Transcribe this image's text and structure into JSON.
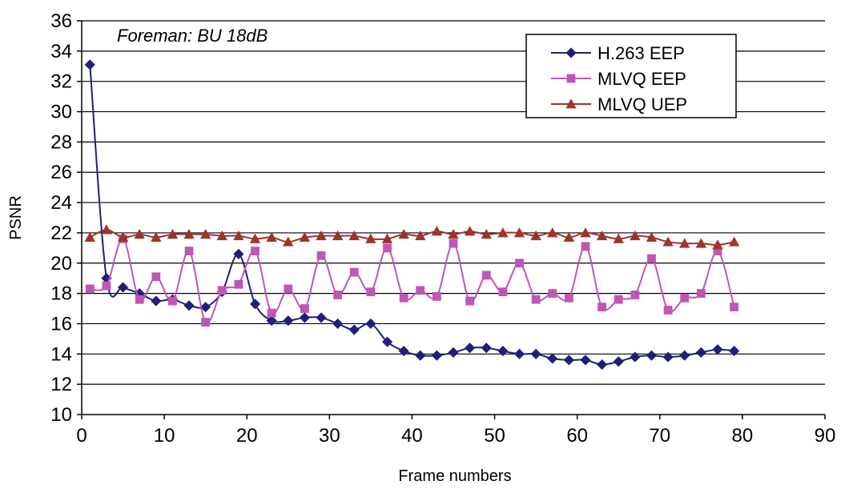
{
  "chart_data": {
    "type": "line",
    "title": "",
    "annotation": "Foreman: BU 18dB",
    "xlabel": "Frame numbers",
    "ylabel": "PSNR",
    "xlim": [
      0,
      90
    ],
    "ylim": [
      10,
      36
    ],
    "xticks": [
      0,
      10,
      20,
      30,
      40,
      50,
      60,
      70,
      80,
      90
    ],
    "yticks": [
      10,
      12,
      14,
      16,
      18,
      20,
      22,
      24,
      26,
      28,
      30,
      32,
      34,
      36
    ],
    "grid": "horizontal",
    "legend_position": "top-right",
    "x": [
      1,
      3,
      5,
      7,
      9,
      11,
      13,
      15,
      17,
      19,
      21,
      23,
      25,
      27,
      29,
      31,
      33,
      35,
      37,
      39,
      41,
      43,
      45,
      47,
      49,
      51,
      53,
      55,
      57,
      59,
      61,
      63,
      65,
      67,
      69,
      71,
      73,
      75,
      77,
      79
    ],
    "series": [
      {
        "name": "H.263  EEP",
        "color": "#1f1f7a",
        "marker": "diamond",
        "values": [
          33.1,
          19.0,
          18.4,
          18.0,
          17.5,
          17.6,
          17.2,
          17.1,
          18.1,
          20.6,
          17.3,
          16.2,
          16.2,
          16.4,
          16.4,
          16.0,
          15.6,
          16.0,
          14.8,
          14.2,
          13.9,
          13.9,
          14.1,
          14.4,
          14.4,
          14.2,
          14.0,
          14.0,
          13.7,
          13.6,
          13.6,
          13.3,
          13.5,
          13.8,
          13.9,
          13.8,
          13.9,
          14.1,
          14.3,
          14.2
        ]
      },
      {
        "name": "MLVQ EEP",
        "color": "#c055b5",
        "marker": "square",
        "values": [
          18.3,
          18.5,
          21.6,
          17.6,
          19.1,
          17.5,
          20.8,
          16.1,
          18.2,
          18.6,
          20.8,
          16.7,
          18.3,
          17.0,
          20.5,
          17.9,
          19.4,
          18.1,
          21.0,
          17.7,
          18.2,
          17.8,
          21.3,
          17.5,
          19.2,
          18.1,
          20.0,
          17.6,
          18.0,
          17.7,
          21.1,
          17.1,
          17.6,
          17.9,
          20.3,
          16.9,
          17.7,
          18.0,
          20.8,
          17.1
        ]
      },
      {
        "name": "MLVQ UEP",
        "color": "#a0332a",
        "marker": "triangle",
        "values": [
          21.7,
          22.2,
          21.7,
          21.9,
          21.7,
          21.9,
          21.9,
          21.9,
          21.8,
          21.8,
          21.6,
          21.7,
          21.4,
          21.7,
          21.8,
          21.8,
          21.8,
          21.6,
          21.6,
          21.9,
          21.8,
          22.1,
          21.9,
          22.1,
          21.9,
          22.0,
          22.0,
          21.8,
          22.0,
          21.7,
          22.0,
          21.8,
          21.6,
          21.8,
          21.7,
          21.4,
          21.3,
          21.3,
          21.2,
          21.4
        ]
      }
    ]
  }
}
